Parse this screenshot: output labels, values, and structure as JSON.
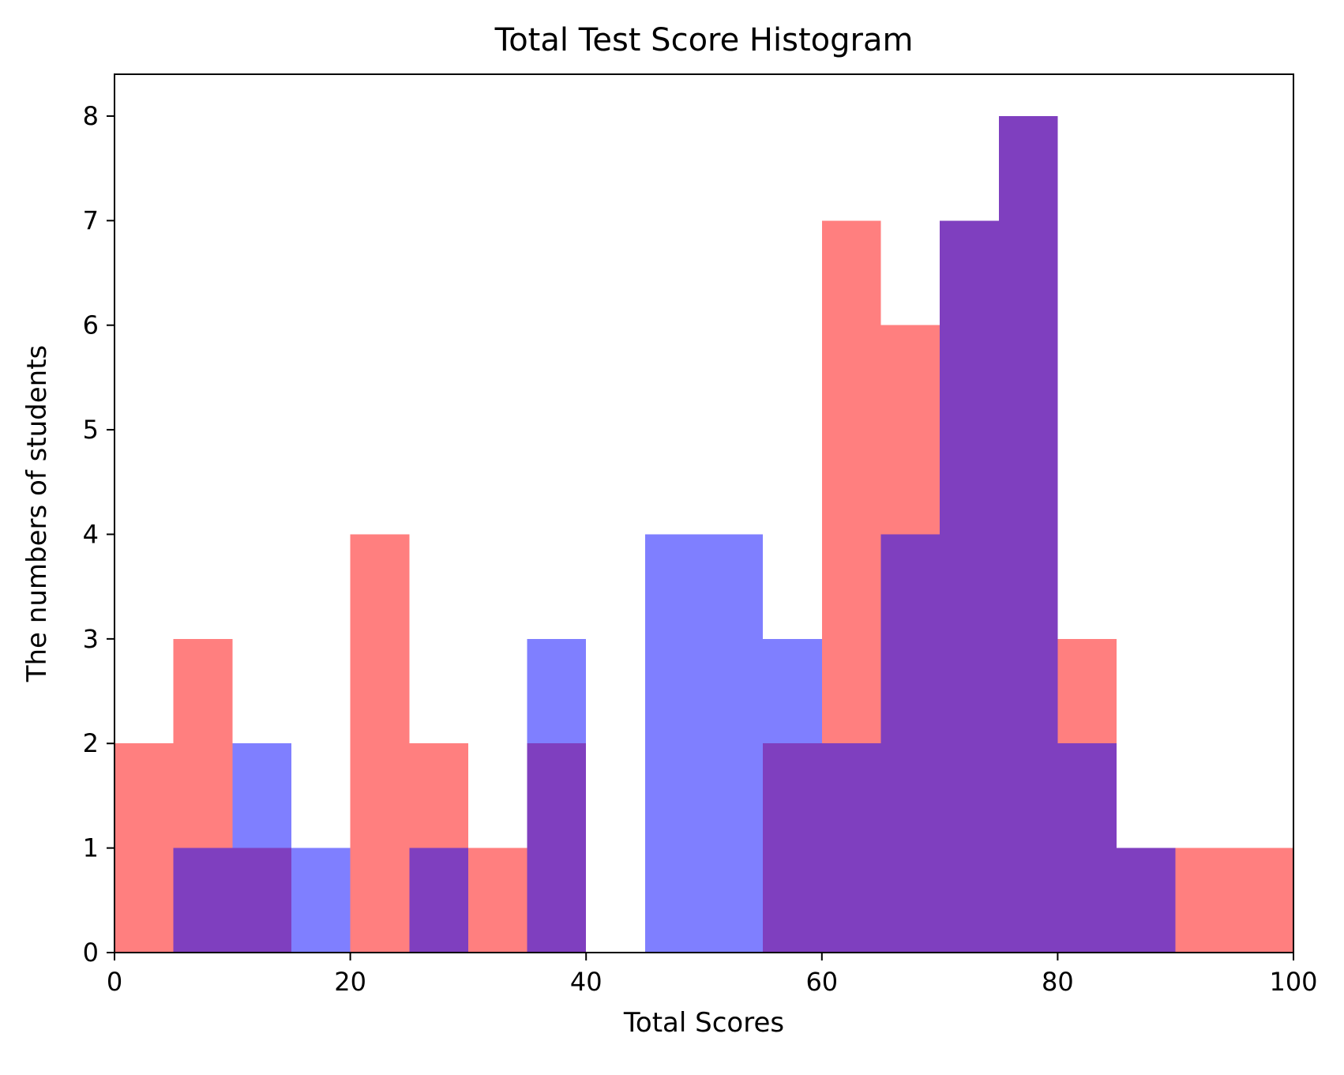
{
  "chart_data": {
    "type": "bar",
    "title": "Total Test Score Histogram",
    "xlabel": "Total Scores",
    "ylabel": "The numbers of students",
    "xlim": [
      0,
      100
    ],
    "ylim": [
      0,
      8.4
    ],
    "xticks": [
      0,
      20,
      40,
      60,
      80,
      100
    ],
    "yticks": [
      0,
      1,
      2,
      3,
      4,
      5,
      6,
      7,
      8
    ],
    "grid": false,
    "bin_edges": [
      0,
      5,
      10,
      15,
      20,
      25,
      30,
      35,
      40,
      45,
      50,
      55,
      60,
      65,
      70,
      75,
      80,
      85,
      90,
      95,
      100
    ],
    "series": [
      {
        "color": "#ff0000",
        "opacity": 0.5,
        "values": [
          2,
          3,
          1,
          0,
          4,
          2,
          1,
          2,
          0,
          0,
          0,
          2,
          7,
          6,
          7,
          8,
          3,
          1,
          1,
          1
        ]
      },
      {
        "color": "#0000ff",
        "opacity": 0.5,
        "values": [
          0,
          1,
          2,
          1,
          0,
          1,
          0,
          3,
          0,
          4,
          4,
          3,
          2,
          4,
          7,
          8,
          2,
          1,
          0,
          0
        ]
      }
    ]
  }
}
